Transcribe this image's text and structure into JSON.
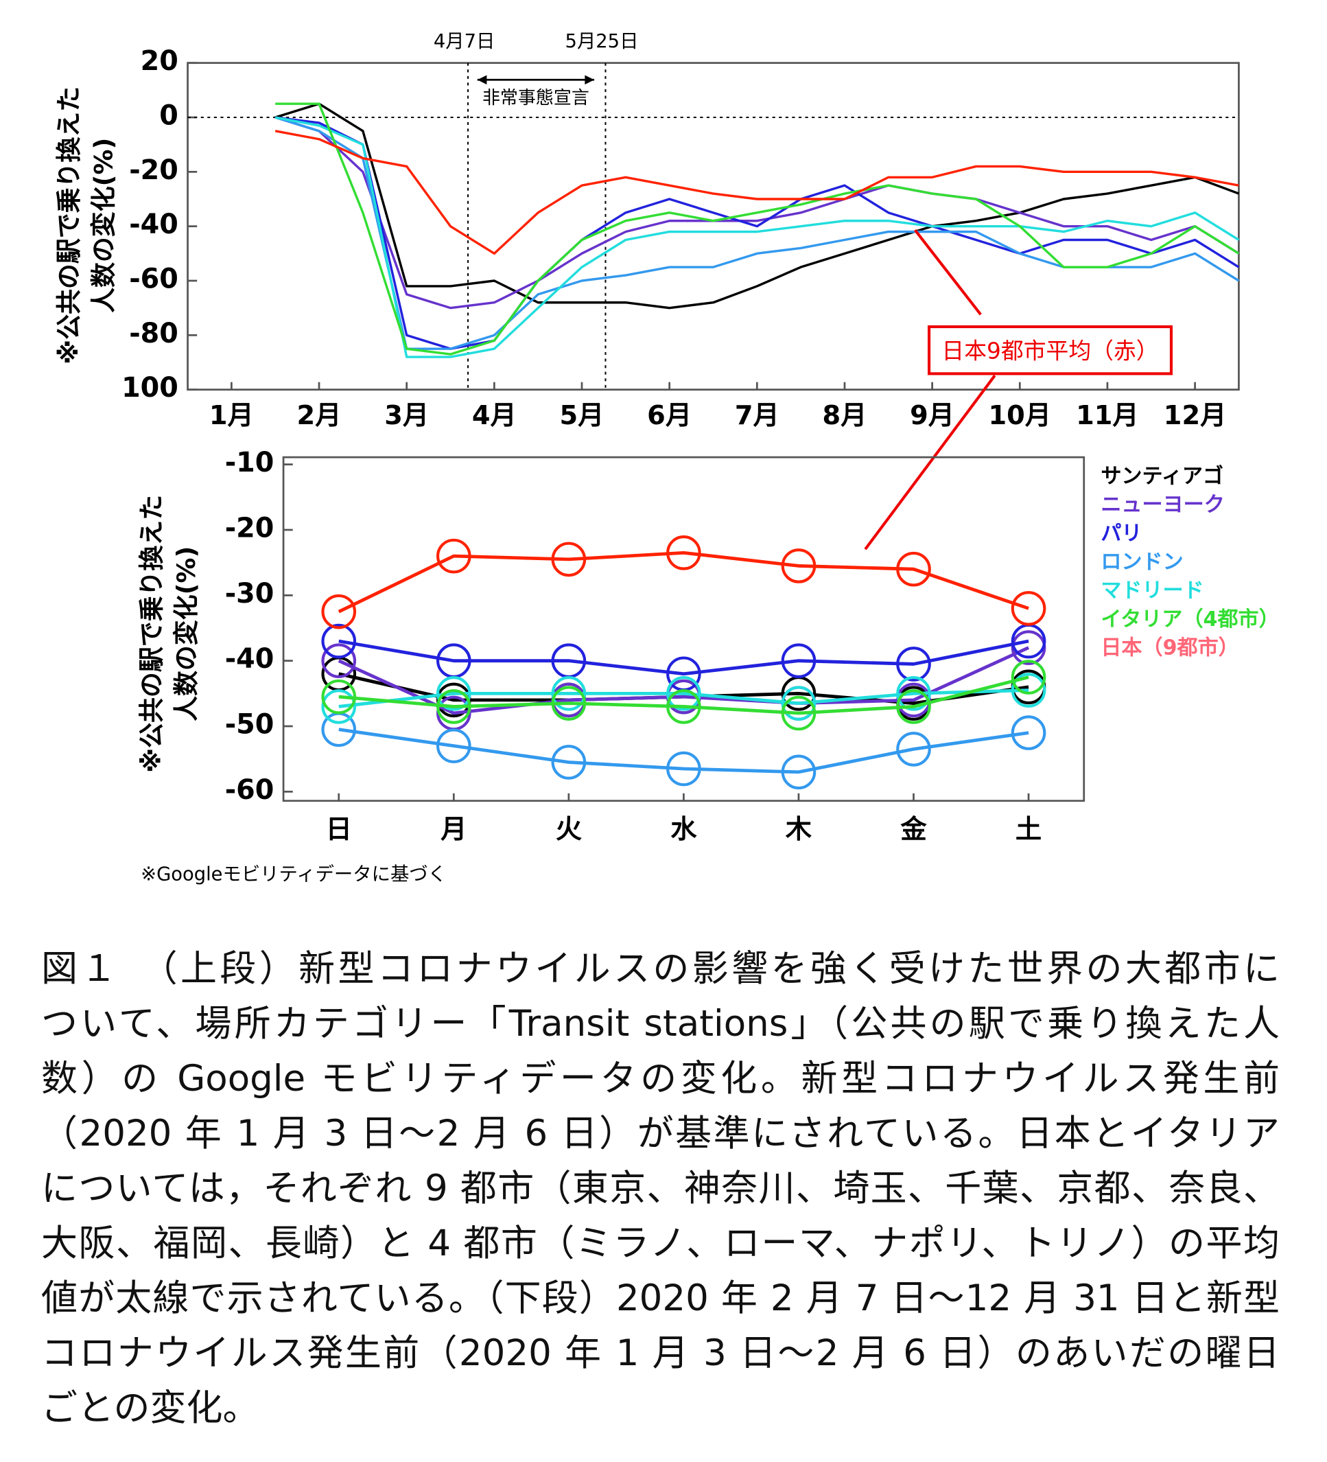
{
  "chart_data": [
    {
      "type": "line",
      "ylabel": [
        "※公共の駅で乗り換えた",
        "人数の変化(%)"
      ],
      "xlim": [
        1,
        13
      ],
      "xticks": [
        {
          "value": 1.5,
          "label": "1月"
        },
        {
          "value": 2.5,
          "label": "2月"
        },
        {
          "value": 3.5,
          "label": "3月"
        },
        {
          "value": 4.5,
          "label": "4月"
        },
        {
          "value": 5.5,
          "label": "5月"
        },
        {
          "value": 6.5,
          "label": "6月"
        },
        {
          "value": 7.5,
          "label": "7月"
        },
        {
          "value": 8.5,
          "label": "8月"
        },
        {
          "value": 9.5,
          "label": "9月"
        },
        {
          "value": 10.5,
          "label": "10月"
        },
        {
          "value": 11.5,
          "label": "11月"
        },
        {
          "value": 12.5,
          "label": "12月"
        }
      ],
      "ylim": [
        -100,
        20
      ],
      "yticks": [
        20,
        0,
        -20,
        -40,
        -60,
        -80,
        {
          "value": -100,
          "label": "100"
        }
      ],
      "vlines": [
        {
          "x": 4.2,
          "label": "4月7日"
        },
        {
          "x": 5.77,
          "label": "5月25日"
        }
      ],
      "span_label": "非常事態宣言",
      "callout": "日本9都市平均（赤）",
      "x": [
        2,
        2.5,
        3,
        3.5,
        4,
        4.5,
        5,
        5.5,
        6,
        6.5,
        7,
        7.5,
        8,
        8.5,
        9,
        9.5,
        10,
        10.5,
        11,
        11.5,
        12,
        12.5,
        13
      ],
      "series": [
        {
          "color": "#000000",
          "values": [
            0,
            5,
            -5,
            -62,
            -62,
            -60,
            -68,
            -68,
            -68,
            -70,
            -68,
            -62,
            -55,
            -50,
            -45,
            -40,
            -38,
            -35,
            -30,
            -28,
            -25,
            -22,
            -28
          ]
        },
        {
          "color": "#6633cc",
          "values": [
            0,
            -5,
            -20,
            -65,
            -70,
            -68,
            -60,
            -50,
            -42,
            -38,
            -38,
            -38,
            -35,
            -30,
            -25,
            -28,
            -30,
            -35,
            -40,
            -40,
            -45,
            -40,
            -50
          ]
        },
        {
          "color": "#2222dd",
          "values": [
            0,
            -2,
            -10,
            -80,
            -85,
            -82,
            -60,
            -45,
            -35,
            -30,
            -35,
            -40,
            -30,
            -25,
            -35,
            -40,
            -45,
            -50,
            -45,
            -45,
            -50,
            -45,
            -55
          ]
        },
        {
          "color": "#3399ee",
          "values": [
            0,
            -5,
            -15,
            -85,
            -85,
            -80,
            -65,
            -60,
            -58,
            -55,
            -55,
            -50,
            -48,
            -45,
            -42,
            -42,
            -42,
            -50,
            -55,
            -55,
            -55,
            -50,
            -60
          ]
        },
        {
          "color": "#22dddd",
          "values": [
            0,
            -3,
            -10,
            -88,
            -88,
            -85,
            -70,
            -55,
            -45,
            -42,
            -42,
            -42,
            -40,
            -38,
            -38,
            -40,
            -40,
            -40,
            -42,
            -38,
            -40,
            -35,
            -45
          ]
        },
        {
          "color": "#33dd33",
          "values": [
            5,
            5,
            -35,
            -85,
            -87,
            -82,
            -60,
            -45,
            -38,
            -35,
            -38,
            -35,
            -32,
            -28,
            -25,
            -28,
            -30,
            -40,
            -55,
            -55,
            -50,
            -40,
            -50
          ]
        },
        {
          "color": "#ff2200",
          "values": [
            -5,
            -8,
            -15,
            -18,
            -40,
            -50,
            -35,
            -25,
            -22,
            -25,
            -28,
            -30,
            -30,
            -30,
            -22,
            -22,
            -18,
            -18,
            -20,
            -20,
            -20,
            -22,
            -25
          ]
        }
      ]
    },
    {
      "type": "line",
      "markers": true,
      "ylabel": [
        "※公共の駅で乗り換えた",
        "人数の変化(%)"
      ],
      "categories": [
        "日",
        "月",
        "火",
        "水",
        "木",
        "金",
        "土"
      ],
      "ylim": [
        -61.4,
        -8.9
      ],
      "yticks": [
        -10,
        -20,
        -30,
        -40,
        -50,
        -60
      ],
      "legend": "right",
      "series": [
        {
          "name": "サンティアゴ",
          "color": "#000000",
          "values": [
            -42,
            -46,
            -46,
            -45.5,
            -45,
            -46.5,
            -44
          ]
        },
        {
          "name": "ニューヨーク",
          "color": "#6633cc",
          "values": [
            -40,
            -48,
            -46,
            -45.5,
            -46.5,
            -46,
            -38
          ]
        },
        {
          "name": "パリ",
          "color": "#2222dd",
          "values": [
            -37,
            -40,
            -40,
            -42,
            -40,
            -40.5,
            -37
          ]
        },
        {
          "name": "ロンドン",
          "color": "#3399ee",
          "values": [
            -50.5,
            -53,
            -55.5,
            -56.5,
            -57,
            -53.5,
            -51
          ]
        },
        {
          "name": "マドリード",
          "color": "#22dddd",
          "values": [
            -47,
            -45,
            -45,
            -45,
            -46.5,
            -45,
            -44.5
          ]
        },
        {
          "name": "イタリア（4都市）",
          "color": "#33dd33",
          "values": [
            -45.5,
            -47,
            -46.5,
            -47,
            -48,
            -47,
            -42.5
          ]
        },
        {
          "name": "日本（9都市）",
          "color": "#ff2200",
          "legend_color": "#ff6677",
          "values": [
            -32.5,
            -24,
            -24.5,
            -23.5,
            -25.5,
            -26,
            -32
          ]
        }
      ]
    }
  ],
  "footnote": "※Googleモビリティデータに基づく",
  "caption_lines": [
    "図１　（上段）新型コロナウイルスの影響を強く受けた世界の大都市に",
    "ついて、場所カテゴリー「Transit stations」（公共の駅で乗り換えた人",
    "数）の Google モビリティデータの変化。新型コロナウイルス発生前",
    "（2020 年 1 月 3 日～2 月 6 日）が基準にされている。日本とイタリア",
    "については，それぞれ 9 都市（東京、神奈川、埼玉、千葉、京都、奈良、",
    "大阪、福岡、長崎）と 4 都市（ミラノ、ローマ、ナポリ、トリノ）の平均",
    "値が太線で示されている。（下段）2020 年 2 月 7 日～12 月 31 日と新型",
    "コロナウイルス発生前（2020 年 1 月 3 日～2 月 6 日）のあいだの曜日",
    "ごとの変化。"
  ]
}
